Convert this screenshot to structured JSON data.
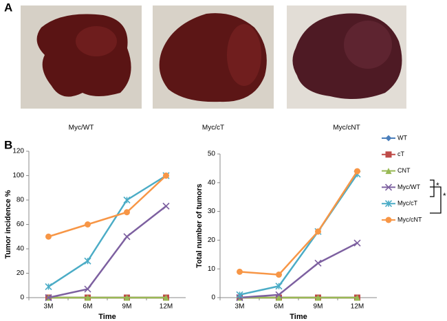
{
  "panel_labels": [
    "A",
    "B"
  ],
  "photo_captions": [
    "Myc/WT",
    "Myc/cT",
    "Myc/cNT"
  ],
  "chart_data": [
    {
      "type": "line",
      "x_label": "Time",
      "y_label": "Tumor incidence %",
      "categories": [
        "3M",
        "6M",
        "9M",
        "12M"
      ],
      "ylim": [
        0,
        120
      ],
      "yticks": [
        0,
        20,
        40,
        60,
        80,
        100,
        120
      ],
      "series": [
        {
          "color": "#4a7ebb",
          "marker": "diamond",
          "values": [
            0,
            0,
            0,
            0
          ]
        },
        {
          "color": "#be4b48",
          "marker": "square",
          "values": [
            0,
            0,
            0,
            0
          ]
        },
        {
          "color": "#98b954",
          "marker": "triangle",
          "values": [
            0,
            0,
            0,
            0
          ]
        },
        {
          "color": "#7d60a0",
          "marker": "x",
          "values": [
            0,
            7,
            50,
            75
          ]
        },
        {
          "color": "#4bacc6",
          "marker": "star",
          "values": [
            9,
            30,
            80,
            100
          ]
        },
        {
          "color": "#f79646",
          "marker": "circle",
          "values": [
            50,
            60,
            70,
            100
          ]
        }
      ]
    },
    {
      "type": "line",
      "x_label": "Time",
      "y_label": "Total number of tumors",
      "categories": [
        "3M",
        "6M",
        "9M",
        "12M"
      ],
      "ylim": [
        0,
        50
      ],
      "yticks": [
        0,
        10,
        20,
        30,
        40,
        50
      ],
      "annotations": [
        "*",
        "*"
      ],
      "series": [
        {
          "name": "WT",
          "color": "#4a7ebb",
          "marker": "diamond",
          "values": [
            0,
            0,
            0,
            0
          ]
        },
        {
          "name": "cT",
          "color": "#be4b48",
          "marker": "square",
          "values": [
            0,
            0,
            0,
            0
          ]
        },
        {
          "name": "CNT",
          "color": "#98b954",
          "marker": "triangle",
          "values": [
            0,
            0,
            0,
            0
          ]
        },
        {
          "name": "Myc/WT",
          "color": "#7d60a0",
          "marker": "x",
          "values": [
            0,
            1,
            12,
            19
          ]
        },
        {
          "name": "Myc/cT",
          "color": "#4bacc6",
          "marker": "star",
          "values": [
            1,
            4,
            23,
            43
          ]
        },
        {
          "name": "Myc/cNT",
          "color": "#f79646",
          "marker": "circle",
          "values": [
            9,
            8,
            23,
            44
          ]
        }
      ]
    }
  ]
}
